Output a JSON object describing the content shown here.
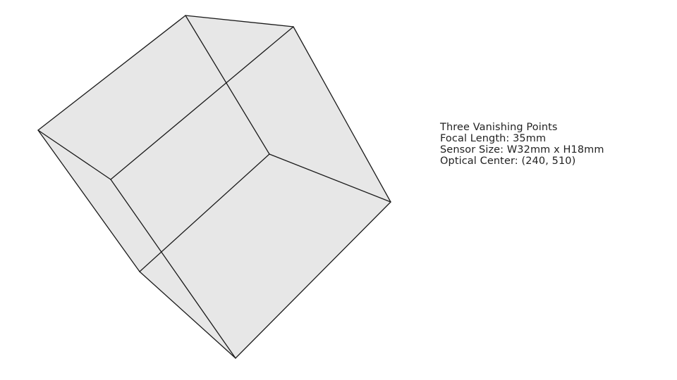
{
  "diagram": {
    "fill_color": "#e7e7e7",
    "edge_color": "#1a1a1a",
    "background_color": "#ffffff"
  },
  "info": {
    "line1": "Three Vanishing Points",
    "line2": "Focal Length: 35mm",
    "line3": "Sensor Size: W32mm x H18mm",
    "line4": "Optical Center: (240, 510)"
  }
}
